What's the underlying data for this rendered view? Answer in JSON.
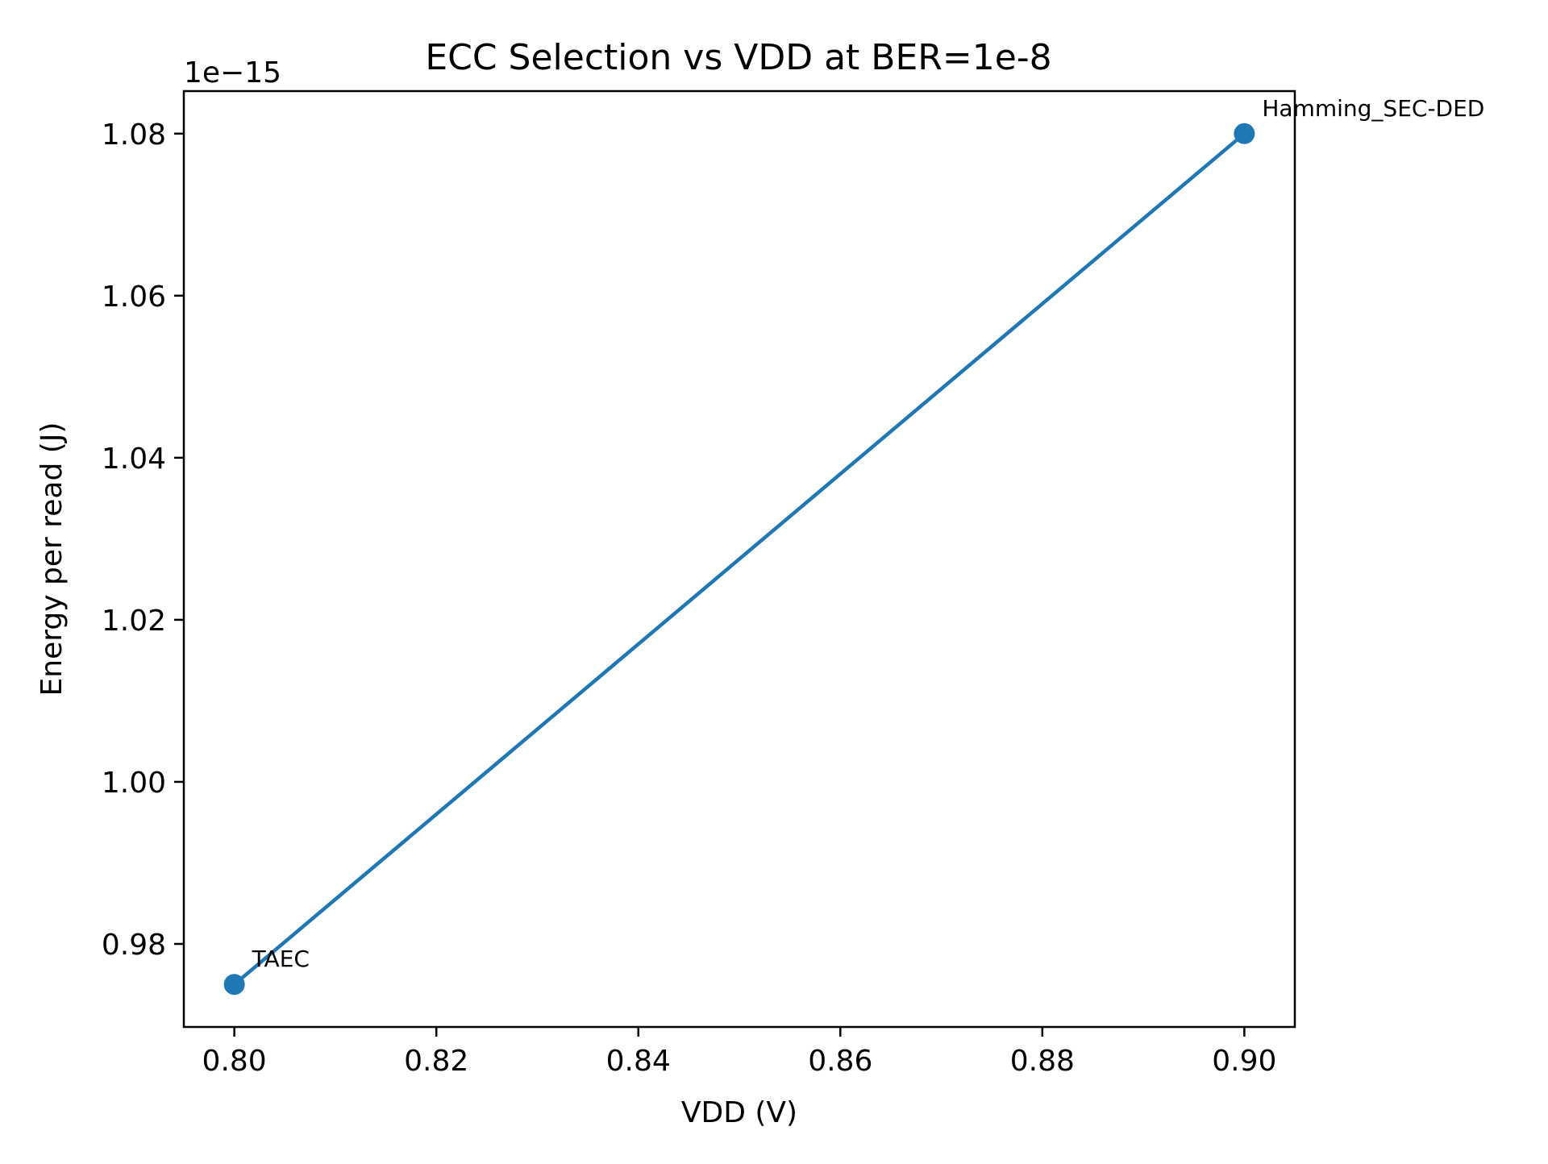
{
  "chart_data": {
    "type": "line",
    "title": "ECC Selection vs VDD at BER=1e-8",
    "xlabel": "VDD (V)",
    "ylabel": "Energy per read (J)",
    "y_offset_label": "1e−15",
    "y_scale_exponent": -15,
    "xlim": [
      0.795,
      0.905
    ],
    "ylim": [
      0.96975,
      1.08525
    ],
    "x_ticks": [
      0.8,
      0.82,
      0.84,
      0.86,
      0.88,
      0.9
    ],
    "x_tick_labels": [
      "0.80",
      "0.82",
      "0.84",
      "0.86",
      "0.88",
      "0.90"
    ],
    "y_ticks": [
      0.98,
      1.0,
      1.02,
      1.04,
      1.06,
      1.08
    ],
    "y_tick_labels": [
      "0.98",
      "1.00",
      "1.02",
      "1.04",
      "1.06",
      "1.08"
    ],
    "grid": false,
    "legend": false,
    "series": [
      {
        "color": "#1f77b4",
        "marker": "circle",
        "points": [
          {
            "x": 0.8,
            "y": 0.975,
            "label": "TAEC"
          },
          {
            "x": 0.9,
            "y": 1.08,
            "label": "Hamming_SEC-DED"
          }
        ]
      }
    ]
  }
}
